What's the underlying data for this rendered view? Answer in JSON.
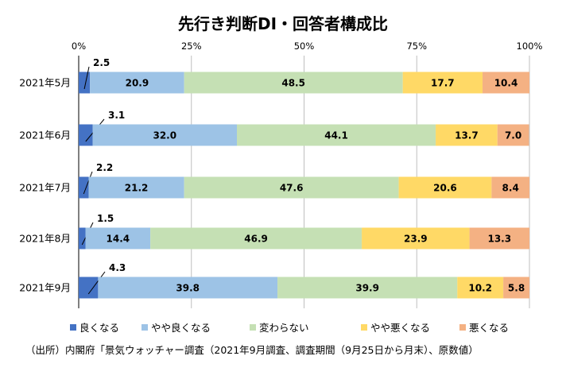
{
  "chart_data": {
    "type": "bar",
    "orientation": "horizontal",
    "stacked": true,
    "title": "先行き判断DI・回答者構成比",
    "categories": [
      "2021年5月",
      "2021年6月",
      "2021年7月",
      "2021年8月",
      "2021年9月"
    ],
    "series": [
      {
        "name": "良くなる",
        "color": "#4472c4",
        "values": [
          2.5,
          3.1,
          2.2,
          1.5,
          4.3
        ]
      },
      {
        "name": "やや良くなる",
        "color": "#9dc3e6",
        "values": [
          20.9,
          32.0,
          21.2,
          14.4,
          39.8
        ]
      },
      {
        "name": "変わらない",
        "color": "#c5e0b4",
        "values": [
          48.5,
          44.1,
          47.6,
          46.9,
          39.9
        ]
      },
      {
        "name": "やや悪くなる",
        "color": "#ffd966",
        "values": [
          17.7,
          13.7,
          20.6,
          23.9,
          10.2
        ]
      },
      {
        "name": "悪くなる",
        "color": "#f4b183",
        "values": [
          10.4,
          7.0,
          8.4,
          13.3,
          5.8
        ]
      }
    ],
    "data_labels": [
      [
        "2.5",
        "20.9",
        "48.5",
        "17.7",
        "10.4"
      ],
      [
        "3.1",
        "32.0",
        "44.1",
        "13.7",
        "7.0"
      ],
      [
        "2.2",
        "21.2",
        "47.6",
        "20.6",
        "8.4"
      ],
      [
        "1.5",
        "14.4",
        "46.9",
        "23.9",
        "13.3"
      ],
      [
        "4.3",
        "39.8",
        "39.9",
        "10.2",
        "5.8"
      ]
    ],
    "x_ticks": [
      "0%",
      "25%",
      "50%",
      "75%",
      "100%"
    ],
    "xlim": [
      0,
      100
    ],
    "grid": true,
    "legend_position": "bottom"
  },
  "source_note": "（出所）内閣府「景気ウォッチャー調査（2021年9月調査、調査期間（9月25日から月末）、原数値）"
}
